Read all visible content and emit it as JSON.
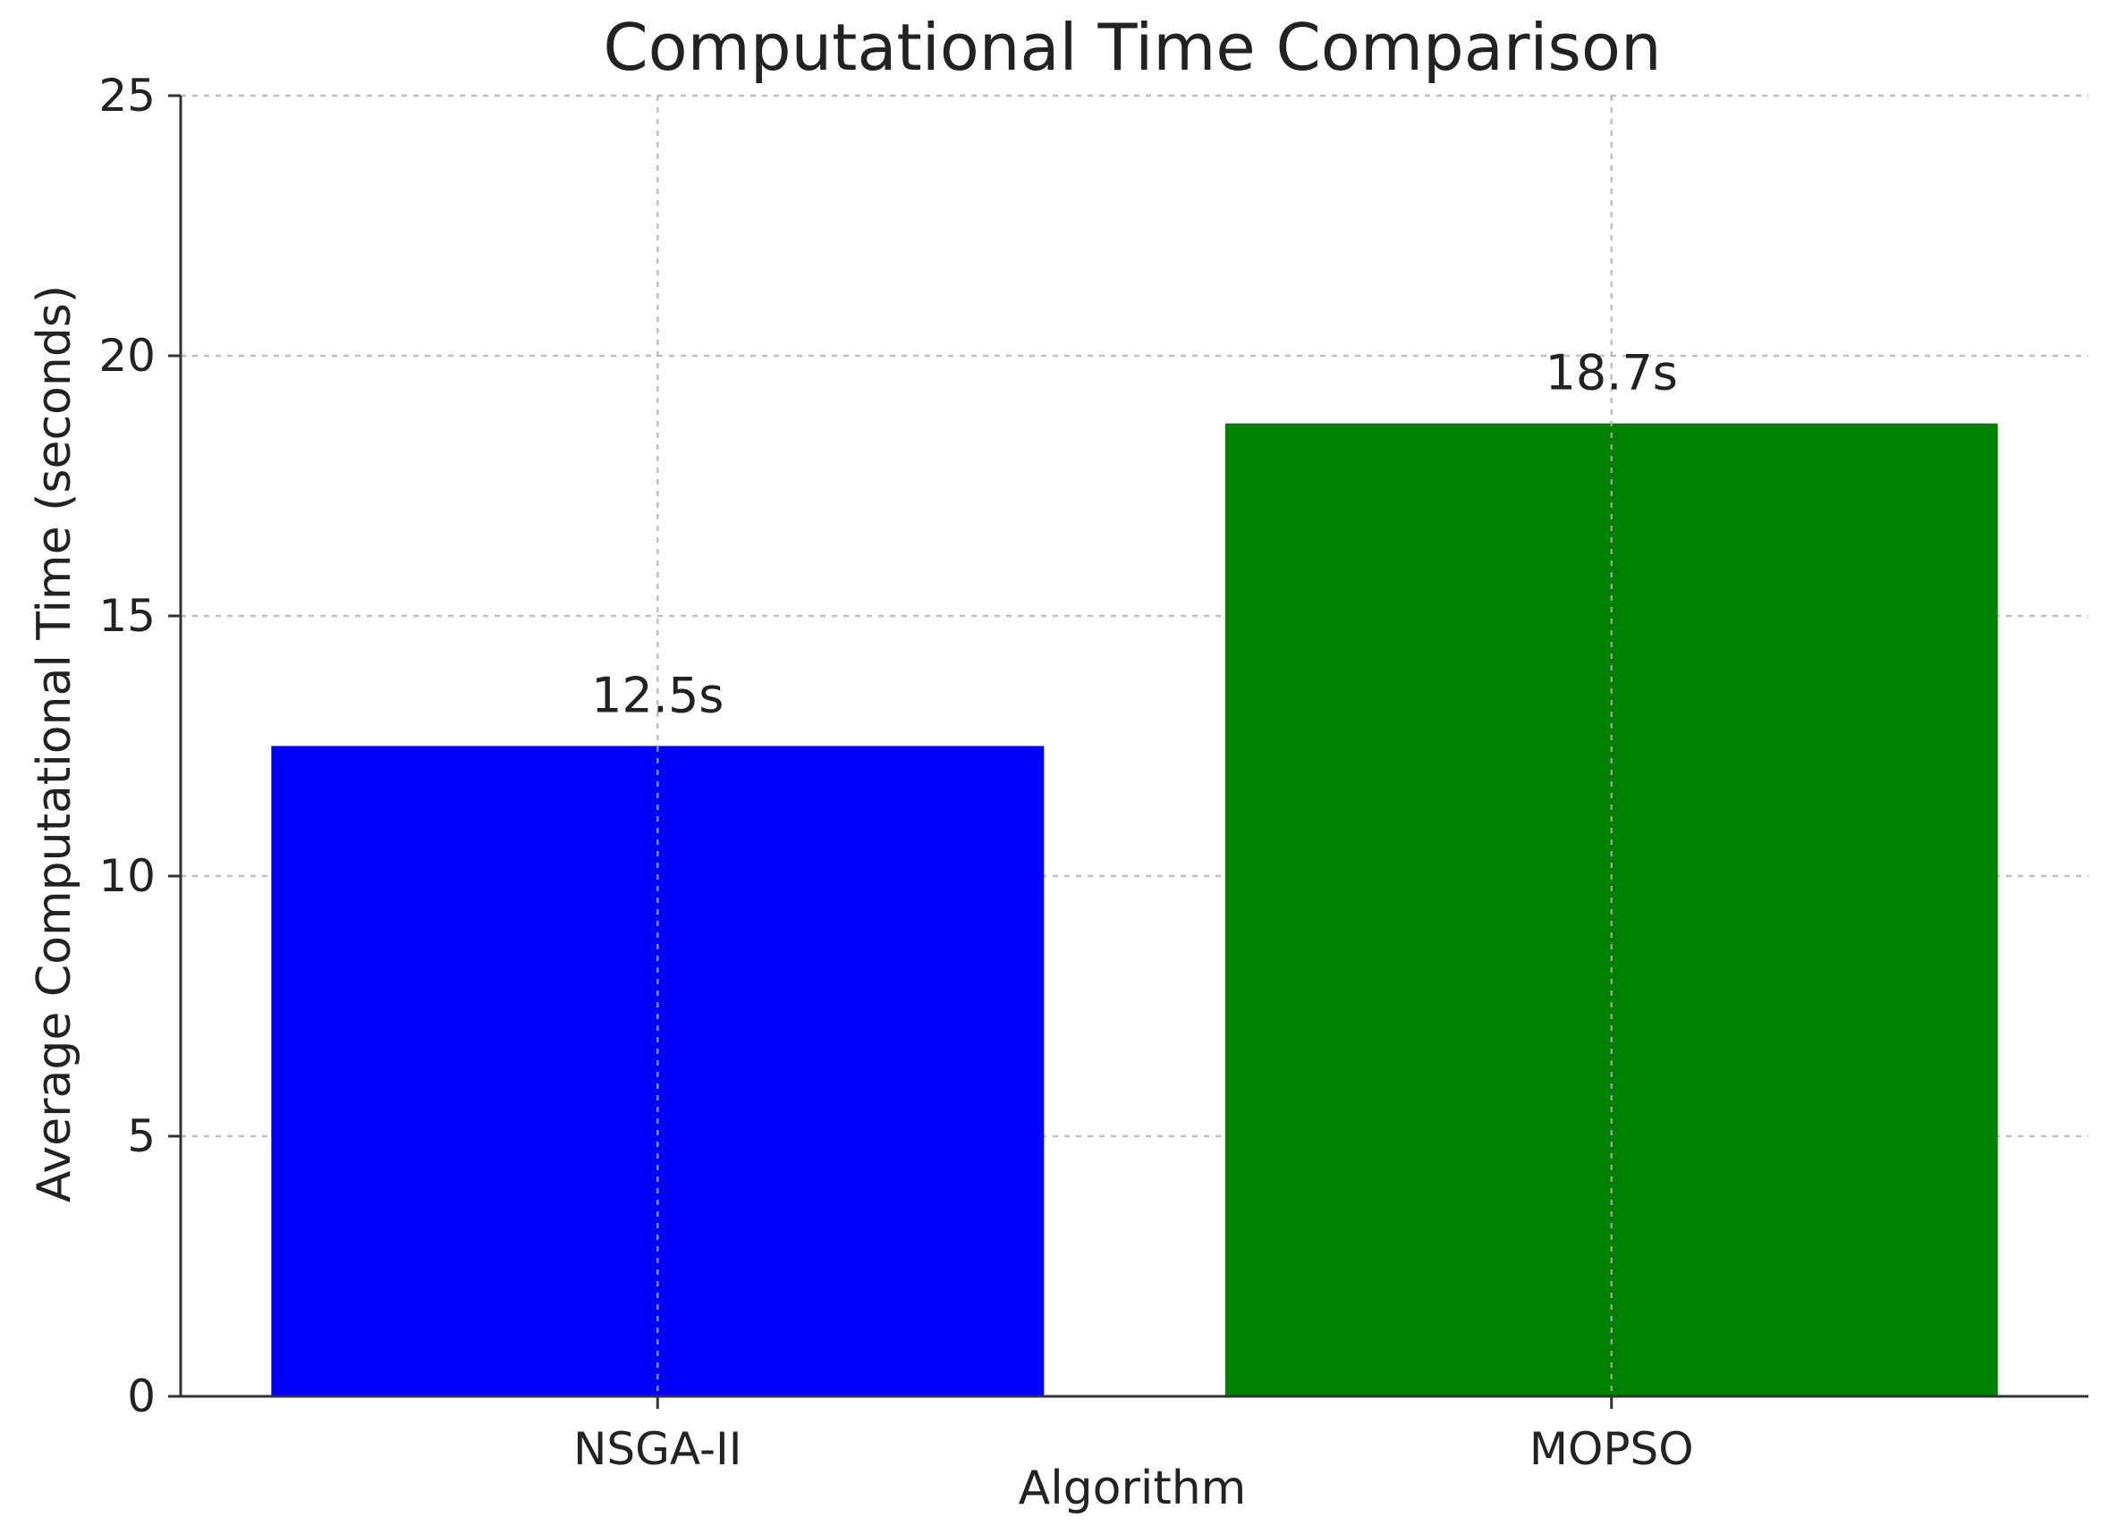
{
  "chart_data": {
    "type": "bar",
    "title": "Computational Time Comparison",
    "xlabel": "Algorithm",
    "ylabel": "Average Computational Time (seconds)",
    "categories": [
      "NSGA-II",
      "MOPSO"
    ],
    "values": [
      12.5,
      18.7
    ],
    "data_labels": [
      "12.5s",
      "18.7s"
    ],
    "colors": [
      "#0000ff",
      "#008000"
    ],
    "ylim": [
      0,
      25
    ],
    "yticks": [
      0,
      5,
      10,
      15,
      20,
      25
    ],
    "grid": true,
    "legend": "none"
  }
}
